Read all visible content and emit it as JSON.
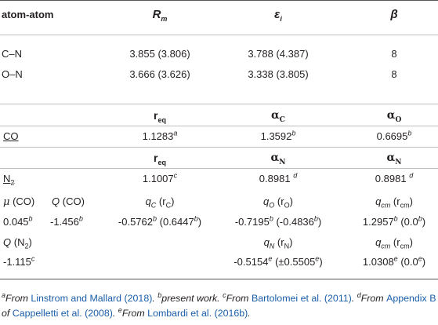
{
  "table1": {
    "headers": [
      "atom-atom",
      "R",
      "m",
      "ε",
      "i",
      "β"
    ],
    "rows": [
      [
        "C–N",
        "3.855 (3.806)",
        "3.788 (4.387)",
        "8"
      ],
      [
        "O–N",
        "3.666 (3.626)",
        "3.338 (3.805)",
        "8"
      ]
    ]
  },
  "table2": {
    "co_header": [
      "r",
      "eq",
      "α",
      "C",
      "α",
      "O"
    ],
    "co_label": "CO",
    "co_values": [
      "1.1283",
      "a",
      "1.3592",
      "b",
      "0.6695",
      "b"
    ],
    "n2_header": [
      "r",
      "eq",
      "α",
      "N",
      "α",
      "N"
    ],
    "n2_label": "N",
    "n2_sub": "2",
    "n2_values": [
      "1.1007",
      "c",
      "0.8981",
      "d",
      "0.8981",
      "d"
    ],
    "row_mu_label": [
      "μ",
      "(CO)",
      "Q",
      "(CO)"
    ],
    "row_q_labels": [
      "q",
      "C",
      "(r",
      "C",
      ")",
      "q",
      "O",
      "(r",
      "O",
      ")",
      "q",
      "cm",
      "(r",
      "cm",
      ")"
    ],
    "row_co_values": [
      "0.045",
      "b",
      "-1.456",
      "b",
      "-0.5762",
      "b",
      "(0.6447",
      "b",
      ")",
      "-0.7195",
      "b",
      "(-0.4836",
      "b",
      ")",
      "1.2957",
      "b",
      "(0.0",
      "b",
      ")"
    ],
    "row_qn2_label": [
      "Q",
      "(N",
      "2",
      ")"
    ],
    "row_qn_labels": [
      "q",
      "N",
      "(r",
      "N",
      ")",
      "q",
      "cm",
      "(r",
      "cm",
      ")"
    ],
    "row_n2_values": [
      "-1.115",
      "c",
      "-0.5154",
      "e",
      "(±0.5505",
      "e",
      ")",
      "1.0308",
      "e",
      "(0.0",
      "e",
      ")"
    ]
  },
  "footnotes": {
    "a_mark": "a",
    "a_text": "From ",
    "a_link": "Linstrom and Mallard (2018)",
    "a_end": ". ",
    "b_mark": "b",
    "b_text": "present work. ",
    "c_mark": "c",
    "c_text": "From ",
    "c_link": "Bartolomei et al. (2011)",
    "c_end": ". ",
    "d_mark": "d",
    "d_text": "From ",
    "d_link1": "Appendix B",
    "d_mid": " of ",
    "d_link2": "Cappelletti et al. (2008)",
    "d_end": ". ",
    "e_mark": "e",
    "e_text": "From ",
    "e_link": "Lombardi et al. (2016b)",
    "e_end": "."
  }
}
